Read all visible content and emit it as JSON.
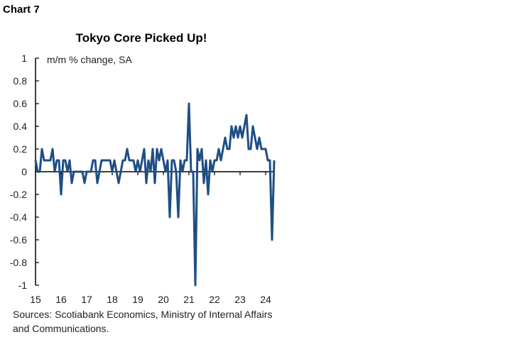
{
  "chart_label": "Chart 7",
  "chart_data": {
    "type": "line",
    "title": "Tokyo Core Picked Up!",
    "ylabel": "m/m % change, SA",
    "xlabel": "",
    "ylim": [
      -1,
      1
    ],
    "yticks": [
      1,
      0.8,
      0.6,
      0.4,
      0.2,
      0,
      -0.2,
      -0.4,
      -0.6,
      -0.8,
      -1
    ],
    "ytick_labels": [
      "1",
      "0.8",
      "0.6",
      "0.4",
      "0.2",
      "0",
      "-0.2",
      "-0.4",
      "-0.6",
      "-0.8",
      "-1"
    ],
    "xtick_labels": [
      "15",
      "16",
      "17",
      "18",
      "19",
      "20",
      "21",
      "22",
      "23",
      "24"
    ],
    "grid": false,
    "line_color": "#1f4e85",
    "x": [
      "2015-01",
      "2015-02",
      "2015-03",
      "2015-04",
      "2015-05",
      "2015-06",
      "2015-07",
      "2015-08",
      "2015-09",
      "2015-10",
      "2015-11",
      "2015-12",
      "2016-01",
      "2016-02",
      "2016-03",
      "2016-04",
      "2016-05",
      "2016-06",
      "2016-07",
      "2016-08",
      "2016-09",
      "2016-10",
      "2016-11",
      "2016-12",
      "2017-01",
      "2017-02",
      "2017-03",
      "2017-04",
      "2017-05",
      "2017-06",
      "2017-07",
      "2017-08",
      "2017-09",
      "2017-10",
      "2017-11",
      "2017-12",
      "2018-01",
      "2018-02",
      "2018-03",
      "2018-04",
      "2018-05",
      "2018-06",
      "2018-07",
      "2018-08",
      "2018-09",
      "2018-10",
      "2018-11",
      "2018-12",
      "2019-01",
      "2019-02",
      "2019-03",
      "2019-04",
      "2019-05",
      "2019-06",
      "2019-07",
      "2019-08",
      "2019-09",
      "2019-10",
      "2019-11",
      "2019-12",
      "2020-01",
      "2020-02",
      "2020-03",
      "2020-04",
      "2020-05",
      "2020-06",
      "2020-07",
      "2020-08",
      "2020-09",
      "2020-10",
      "2020-11",
      "2020-12",
      "2021-01",
      "2021-02",
      "2021-03",
      "2021-04",
      "2021-05",
      "2021-06",
      "2021-07",
      "2021-08",
      "2021-09",
      "2021-10",
      "2021-11",
      "2021-12",
      "2022-01",
      "2022-02",
      "2022-03",
      "2022-04",
      "2022-05",
      "2022-06",
      "2022-07",
      "2022-08",
      "2022-09",
      "2022-10",
      "2022-11",
      "2022-12",
      "2023-01",
      "2023-02",
      "2023-03",
      "2023-04",
      "2023-05",
      "2023-06",
      "2023-07",
      "2023-08",
      "2023-09",
      "2023-10",
      "2023-11",
      "2023-12",
      "2024-01",
      "2024-02",
      "2024-03",
      "2024-04",
      "2024-05"
    ],
    "values": [
      0.1,
      0,
      0,
      0.2,
      0.1,
      0.1,
      0.1,
      0.1,
      0.2,
      0,
      0.1,
      0.1,
      -0.2,
      0.1,
      0.1,
      0,
      0.1,
      -0.1,
      0,
      0,
      0,
      0,
      0,
      -0.1,
      0,
      0,
      0,
      0.1,
      0.1,
      -0.1,
      0,
      0.1,
      0.1,
      0.1,
      0.1,
      0.1,
      0,
      0.1,
      0,
      -0.1,
      0,
      0.1,
      0.1,
      0.2,
      0.1,
      0.1,
      0.1,
      0,
      0.1,
      0,
      0.1,
      0.2,
      -0.1,
      0.1,
      0,
      0.2,
      -0.1,
      0.2,
      0.1,
      0.2,
      0.1,
      0,
      0.1,
      -0.4,
      0.1,
      0.1,
      0,
      -0.4,
      0.1,
      0,
      0.1,
      0.1,
      0.6,
      0,
      0,
      -1.0,
      0.2,
      0.1,
      0.2,
      -0.1,
      0.1,
      -0.2,
      0.1,
      0,
      0.1,
      0.1,
      0.2,
      0.1,
      0.2,
      0.3,
      0.2,
      0.2,
      0.4,
      0.3,
      0.4,
      0.3,
      0.4,
      0.3,
      0.4,
      0.5,
      0.2,
      0.2,
      0.4,
      0.3,
      0.2,
      0.3,
      0.2,
      0.2,
      0.2,
      0.1,
      0.1,
      -0.6,
      0.1
    ]
  },
  "sources": "Sources: Scotiabank Economics, Ministry of Internal Affairs and Communications."
}
